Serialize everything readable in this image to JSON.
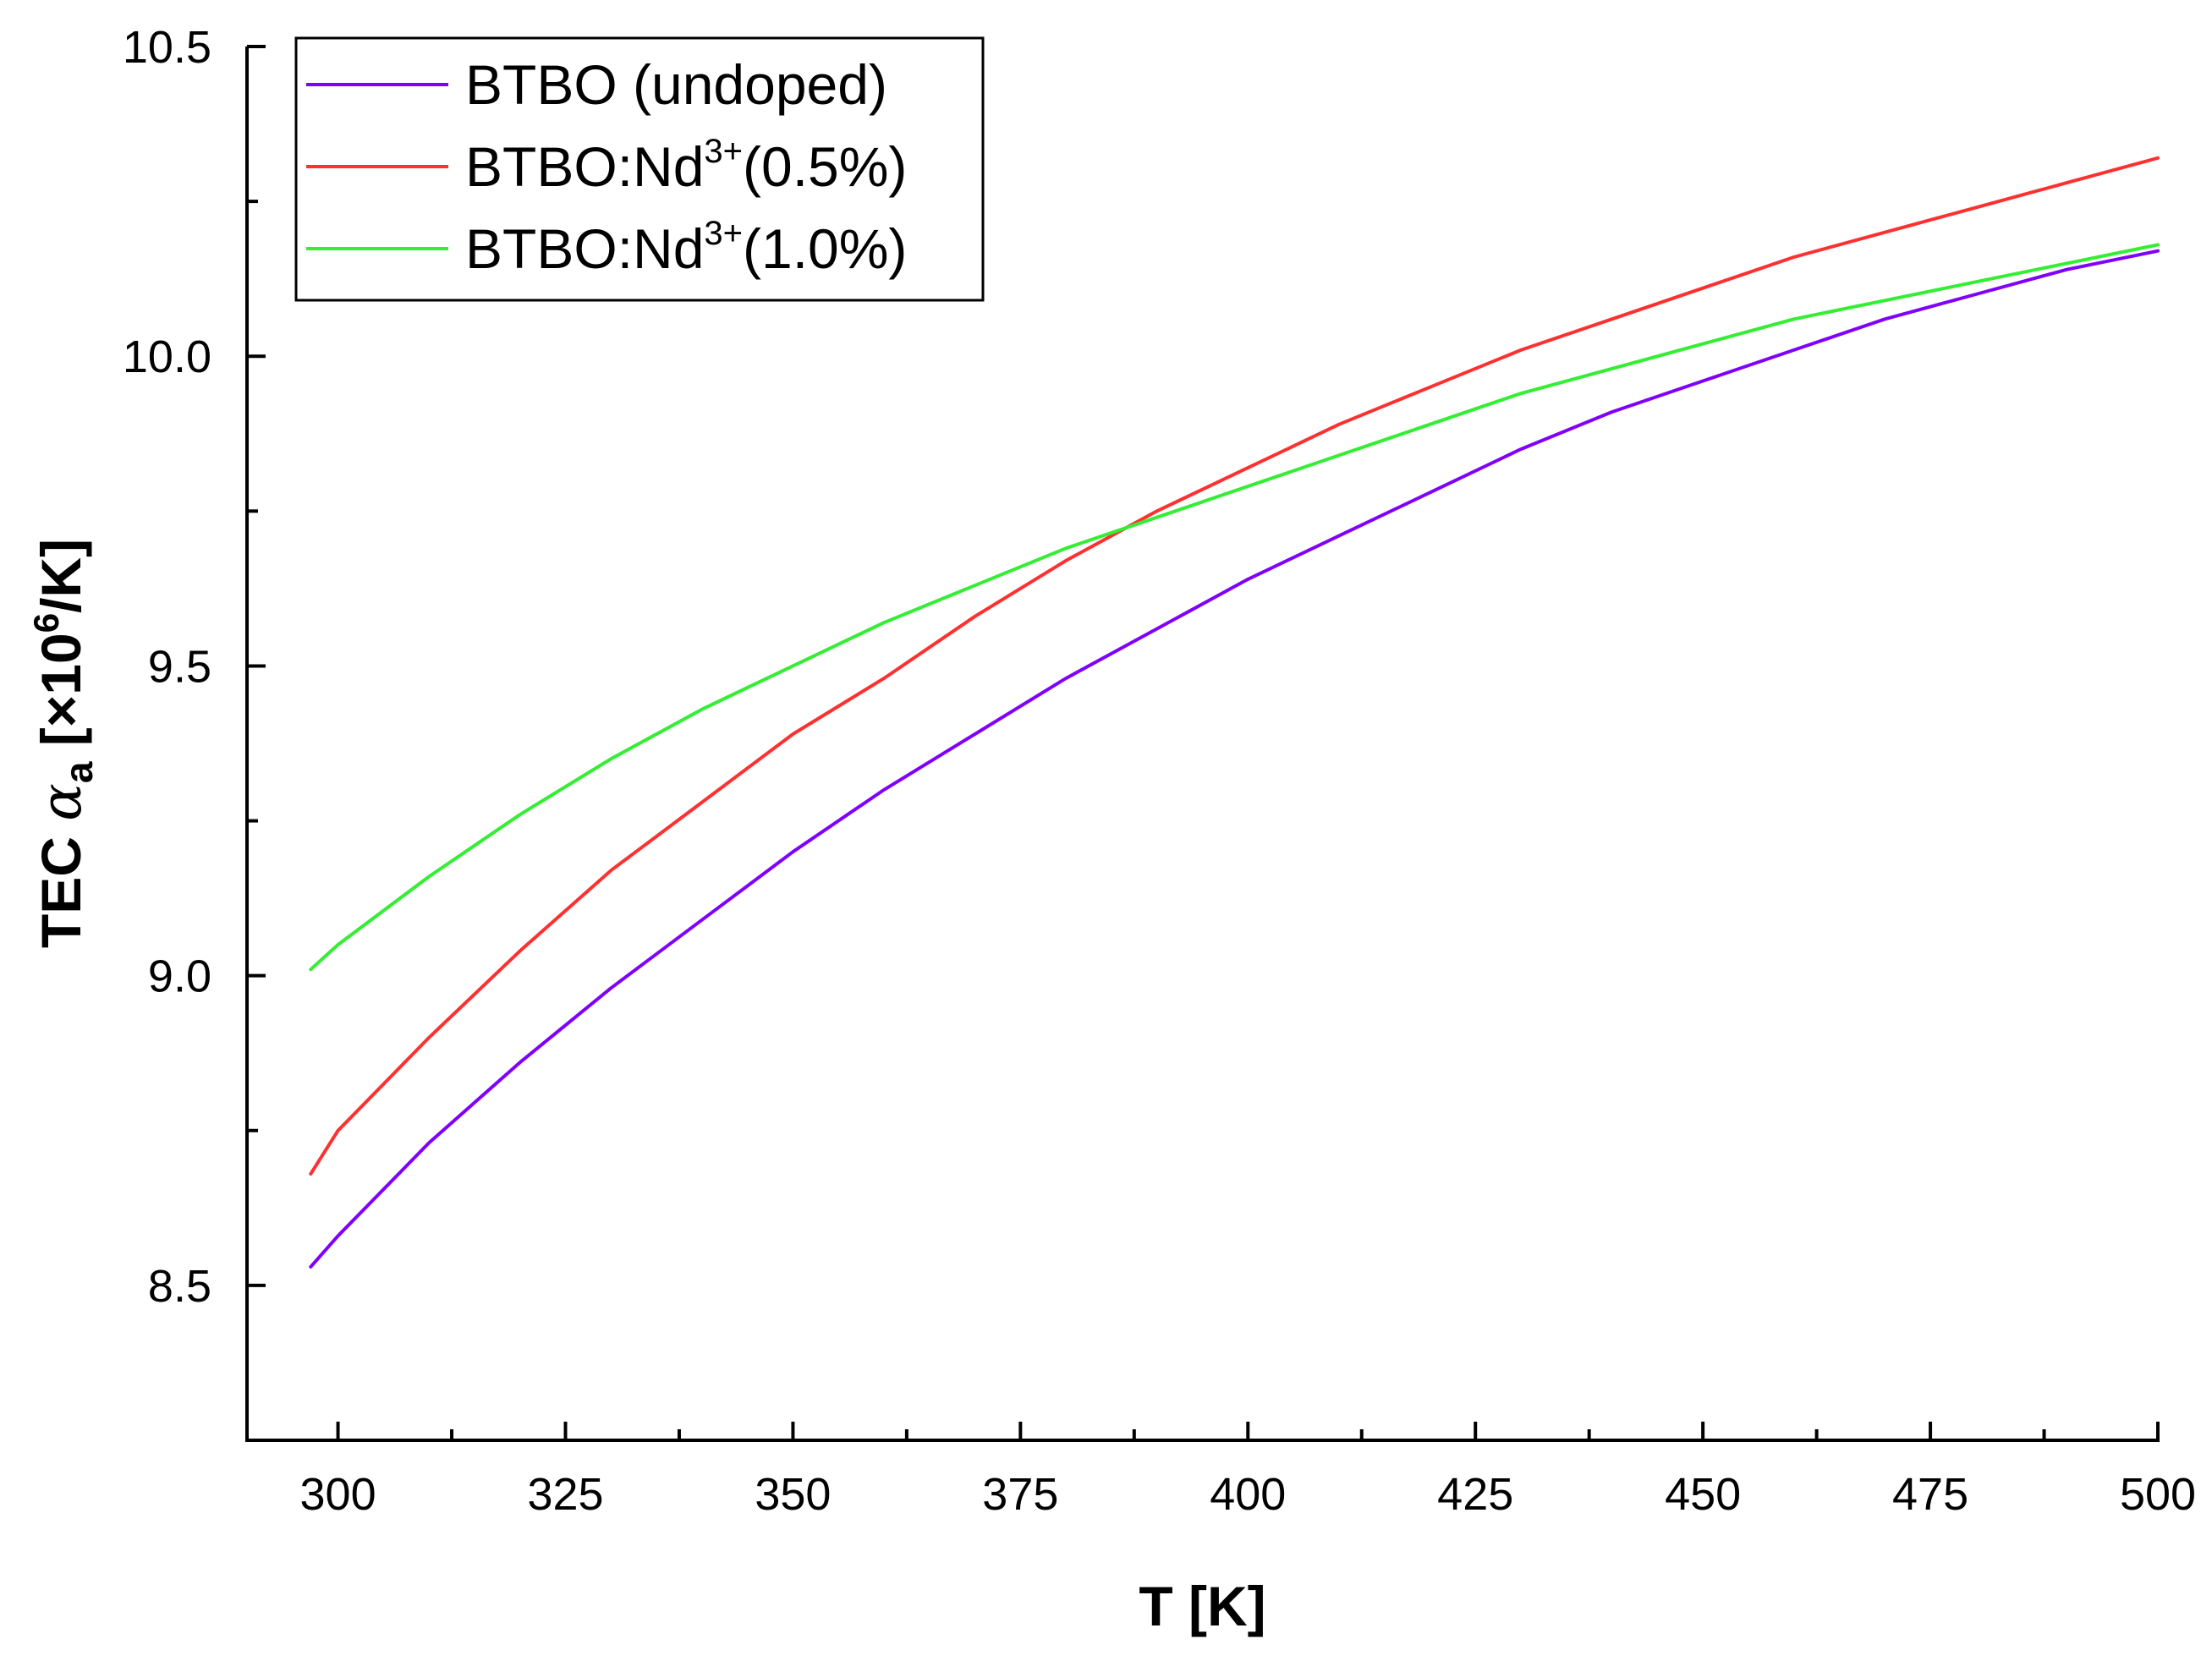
{
  "chart_data": {
    "type": "line",
    "title": "",
    "xlabel": "T [K]",
    "ylabel": {
      "prefix": "TEC ",
      "symbol": "α",
      "subscript": "a",
      "bracket_open": " [×10",
      "exponent": "6",
      "bracket_close": "/K]"
    },
    "xlim": [
      290,
      500
    ],
    "ylim": [
      8.25,
      10.5
    ],
    "xticks": [
      "300",
      "325",
      "350",
      "375",
      "400",
      "425",
      "450",
      "475",
      "500"
    ],
    "yticks": [
      "8.5",
      "9.0",
      "9.5",
      "10.0",
      "10.5"
    ],
    "grid": false,
    "legend_position": "top-left",
    "series": [
      {
        "name": "BTBO (undoped)",
        "legend": {
          "base": "BTBO (undoped)",
          "sup": "",
          "tail": ""
        },
        "color": "#8000ff",
        "x": [
          297,
          300,
          310,
          320,
          330,
          340,
          350,
          360,
          370,
          380,
          390,
          400,
          410,
          420,
          430,
          440,
          450,
          460,
          470,
          480,
          490,
          500
        ],
        "y": [
          8.53,
          8.58,
          8.73,
          8.86,
          8.98,
          9.09,
          9.2,
          9.3,
          9.39,
          9.48,
          9.56,
          9.64,
          9.71,
          9.78,
          9.85,
          9.91,
          9.96,
          10.01,
          10.06,
          10.1,
          10.14,
          10.17
        ]
      },
      {
        "name": "BTBO:Nd3+(0.5%)",
        "legend": {
          "base": "BTBO:Nd",
          "sup": "3+",
          "tail": "(0.5%)"
        },
        "color": "#ff3030",
        "x": [
          297,
          300,
          310,
          320,
          330,
          340,
          350,
          360,
          370,
          380,
          390,
          400,
          410,
          420,
          430,
          440,
          450,
          460,
          470,
          480,
          490,
          500
        ],
        "y": [
          8.68,
          8.75,
          8.9,
          9.04,
          9.17,
          9.28,
          9.39,
          9.48,
          9.58,
          9.67,
          9.75,
          9.82,
          9.89,
          9.95,
          10.01,
          10.06,
          10.11,
          10.16,
          10.2,
          10.24,
          10.28,
          10.32
        ]
      },
      {
        "name": "BTBO:Nd3+(1.0%)",
        "legend": {
          "base": "BTBO:Nd",
          "sup": "3+",
          "tail": "(1.0%)"
        },
        "color": "#33ee33",
        "x": [
          297,
          300,
          310,
          320,
          330,
          340,
          350,
          360,
          370,
          380,
          390,
          400,
          410,
          420,
          430,
          440,
          450,
          460,
          470,
          480,
          490,
          500
        ],
        "y": [
          9.01,
          9.05,
          9.16,
          9.26,
          9.35,
          9.43,
          9.5,
          9.57,
          9.63,
          9.69,
          9.74,
          9.79,
          9.84,
          9.89,
          9.94,
          9.98,
          10.02,
          10.06,
          10.09,
          10.12,
          10.15,
          10.18
        ]
      }
    ]
  }
}
